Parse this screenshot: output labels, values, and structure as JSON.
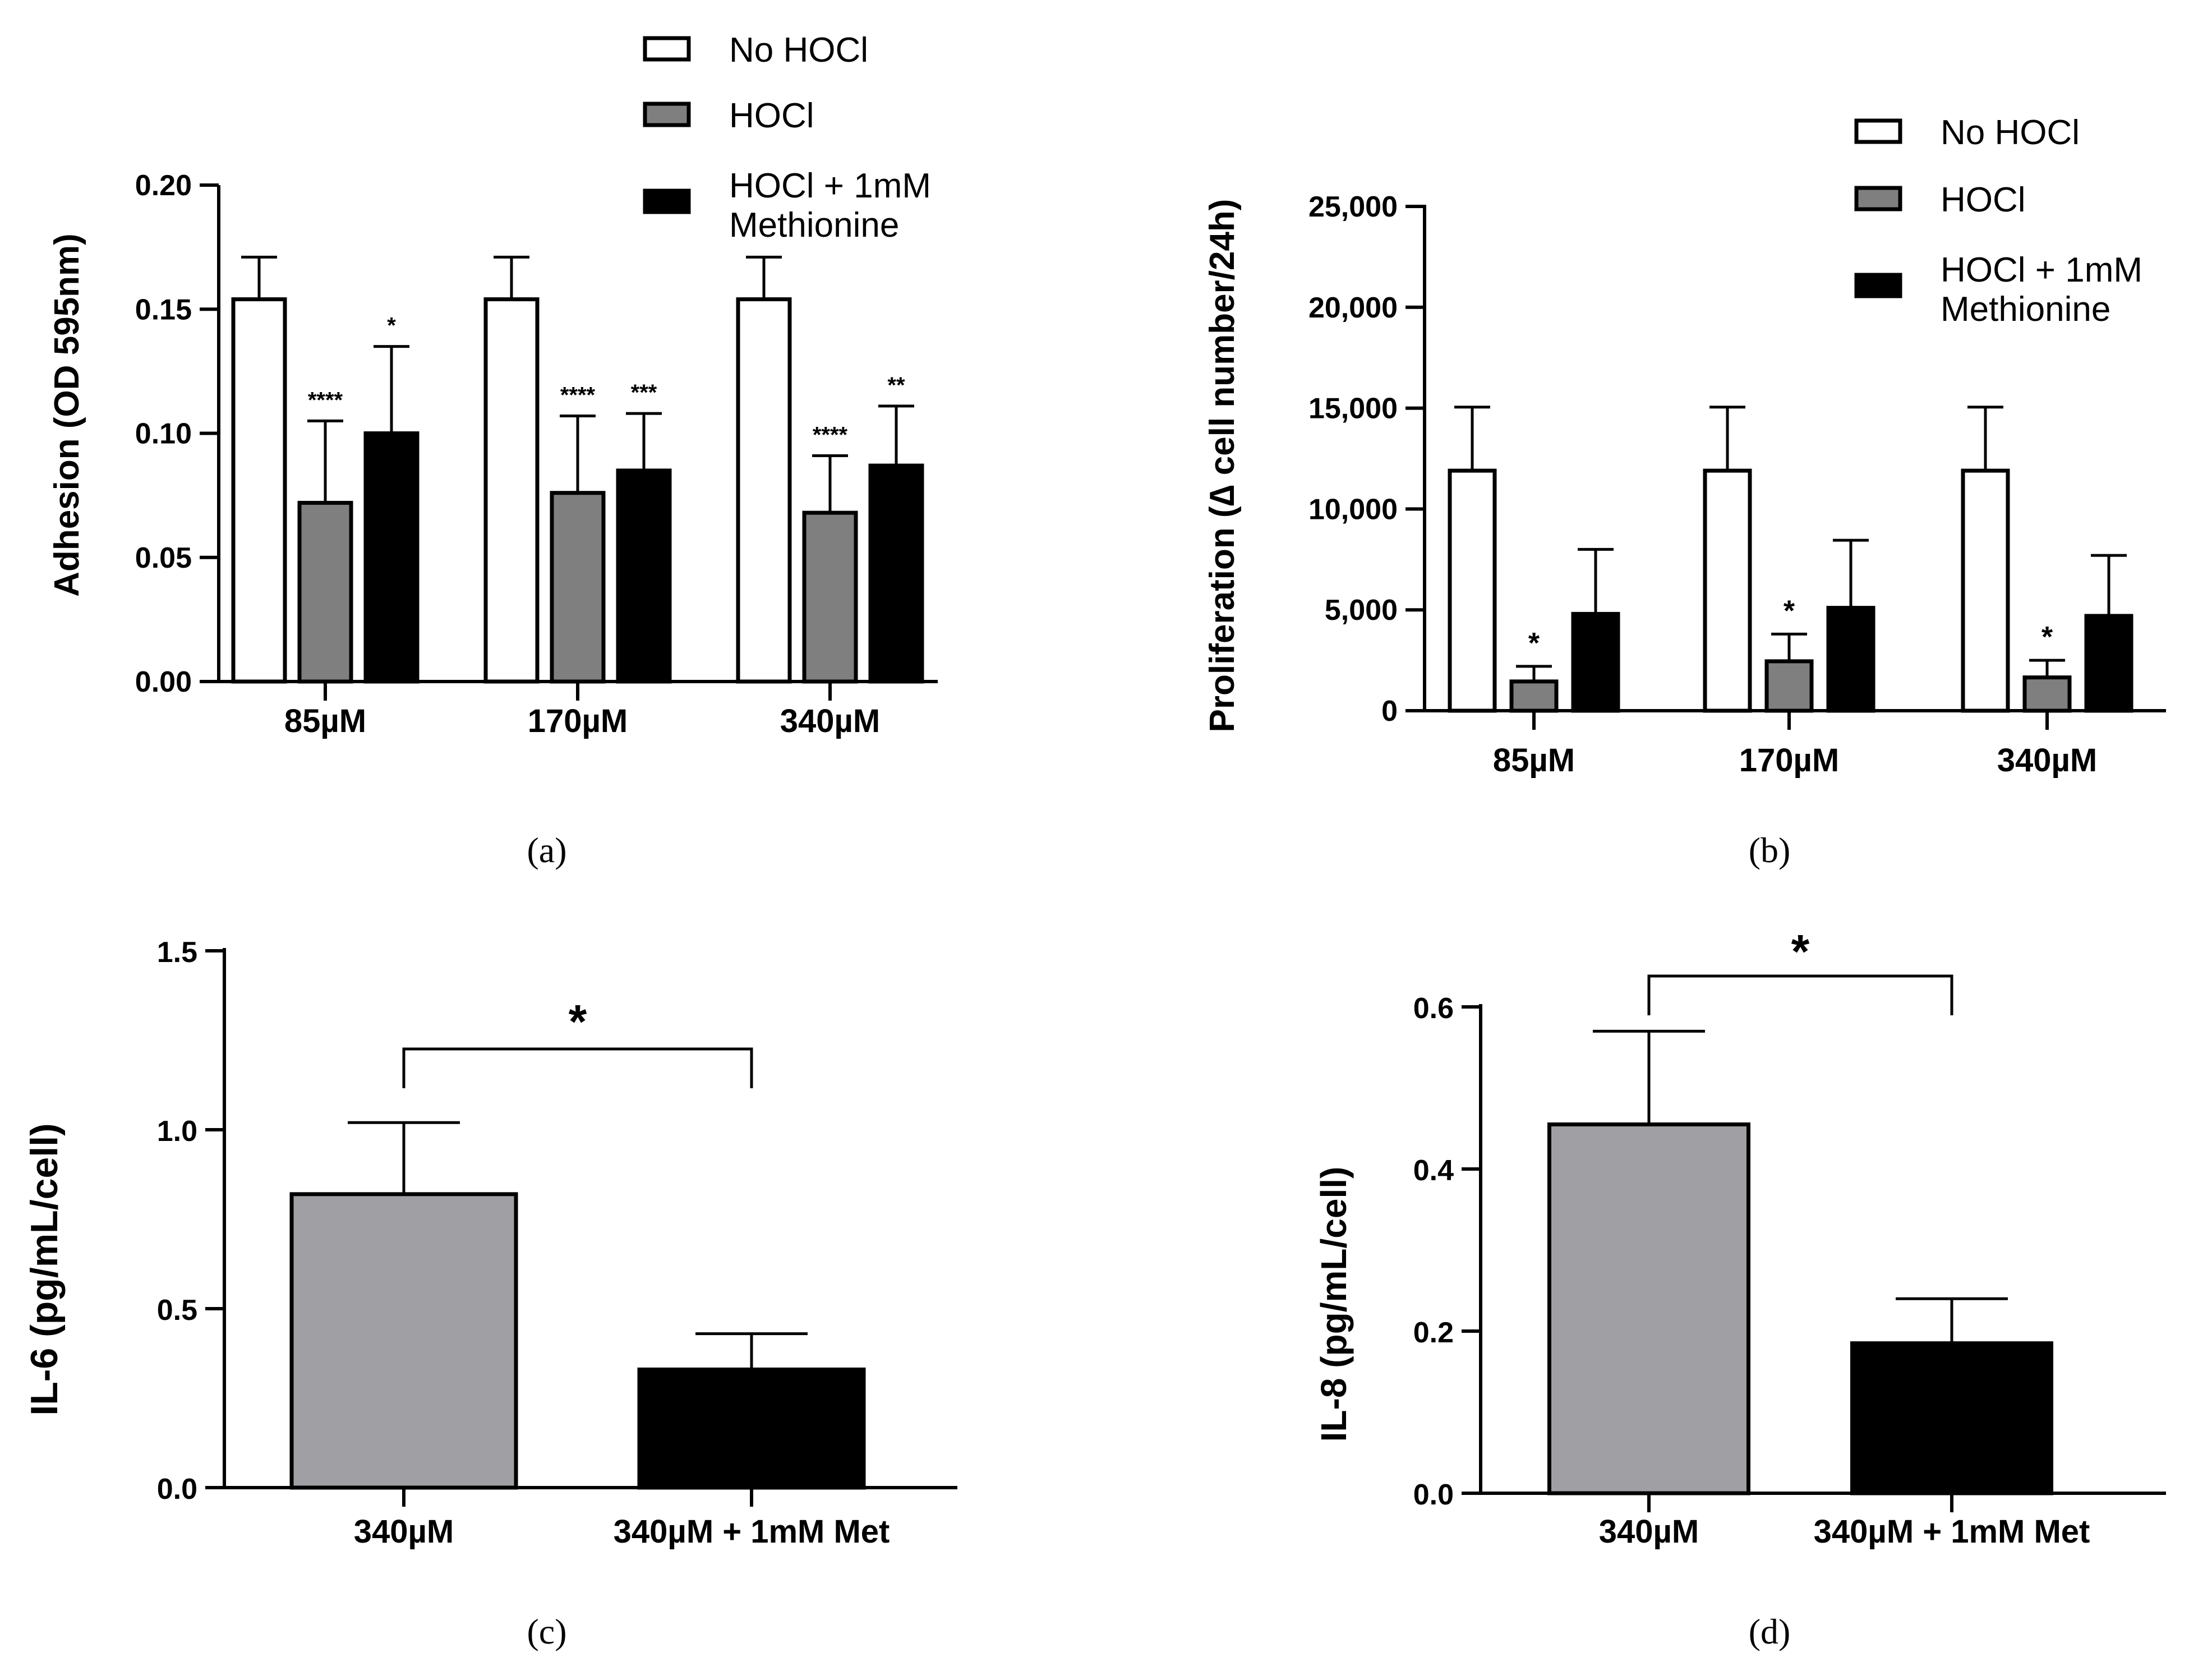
{
  "chart_data": [
    {
      "panel": "a",
      "panel_label": "(a)",
      "type": "bar",
      "ylabel": "Adhesion (OD 595nm)",
      "ylim": [
        0,
        0.2
      ],
      "yticks": [
        "0.00",
        "0.05",
        "0.10",
        "0.15",
        "0.20"
      ],
      "yticks_values": [
        0,
        0.05,
        0.1,
        0.15,
        0.2
      ],
      "categories": [
        "85µM",
        "170µM",
        "340µM"
      ],
      "legend_position": "top-right",
      "legend": [
        "No HOCl",
        "HOCl",
        "HOCl + 1mM",
        "Methionine"
      ],
      "series": [
        {
          "name": "No HOCl",
          "color": "#ffffff",
          "values": [
            0.154,
            0.154,
            0.154
          ],
          "errors": [
            0.017,
            0.017,
            0.017
          ],
          "sig": [
            "",
            "",
            ""
          ]
        },
        {
          "name": "HOCl",
          "color": "#7f7f7f",
          "values": [
            0.072,
            0.076,
            0.068
          ],
          "errors": [
            0.033,
            0.031,
            0.023
          ],
          "sig": [
            "****",
            "****",
            "****"
          ]
        },
        {
          "name": "HOCl + 1mM Methionine",
          "color": "#000000",
          "values": [
            0.1,
            0.085,
            0.087
          ],
          "errors": [
            0.035,
            0.023,
            0.024
          ],
          "sig": [
            "*",
            "***",
            "**"
          ]
        }
      ]
    },
    {
      "panel": "b",
      "panel_label": "(b)",
      "type": "bar",
      "ylabel": "Proliferation (∆ cell number/24h)",
      "ylim": [
        0,
        25000
      ],
      "yticks": [
        "0",
        "5,000",
        "10,000",
        "15,000",
        "20,000",
        "25,000"
      ],
      "yticks_values": [
        0,
        5000,
        10000,
        15000,
        20000,
        25000
      ],
      "categories": [
        "85µM",
        "170µM",
        "340µM"
      ],
      "legend_position": "top-right",
      "legend": [
        "No HOCl",
        "HOCl",
        "HOCl + 1mM",
        "Methionine"
      ],
      "series": [
        {
          "name": "No HOCl",
          "color": "#ffffff",
          "values": [
            11900,
            11900,
            11900
          ],
          "errors": [
            3150,
            3150,
            3150
          ],
          "sig": [
            "",
            "",
            ""
          ]
        },
        {
          "name": "HOCl",
          "color": "#7f7f7f",
          "values": [
            1450,
            2450,
            1650
          ],
          "errors": [
            750,
            1350,
            850
          ],
          "sig": [
            "*",
            "*",
            "*"
          ]
        },
        {
          "name": "HOCl + 1mM Methionine",
          "color": "#000000",
          "values": [
            4800,
            5100,
            4700
          ],
          "errors": [
            3200,
            3350,
            3000
          ],
          "sig": [
            "",
            "",
            ""
          ]
        }
      ]
    },
    {
      "panel": "c",
      "panel_label": "(c)",
      "type": "bar",
      "ylabel": "IL-6 (pg/mL/cell)",
      "ylim": [
        0,
        1.5
      ],
      "yticks": [
        "0.0",
        "0.5",
        "1.0",
        "1.5"
      ],
      "yticks_values": [
        0,
        0.5,
        1.0,
        1.5
      ],
      "categories": [
        "340µM",
        "340µM + 1mM Met"
      ],
      "colors": [
        "#a0a0a4",
        "#000000"
      ],
      "values": [
        0.82,
        0.33
      ],
      "errors": [
        0.2,
        0.1
      ],
      "significance": "*"
    },
    {
      "panel": "d",
      "panel_label": "(d)",
      "type": "bar",
      "ylabel": "IL-8 (pg/mL/cell)",
      "ylim": [
        0,
        0.6
      ],
      "yticks": [
        "0.0",
        "0.2",
        "0.4",
        "0.6"
      ],
      "yticks_values": [
        0,
        0.2,
        0.4,
        0.6
      ],
      "categories": [
        "340µM",
        "340µM + 1mM Met"
      ],
      "colors": [
        "#a0a0a4",
        "#000000"
      ],
      "values": [
        0.455,
        0.185
      ],
      "errors": [
        0.115,
        0.055
      ],
      "significance": "*"
    }
  ]
}
